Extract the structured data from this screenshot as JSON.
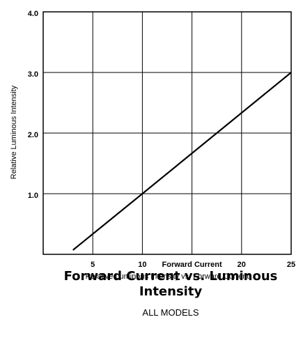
{
  "chart_data": {
    "type": "line",
    "title": "Forward Current vs. Luminous Intensity",
    "subtitle": "ALL MODELS",
    "caption": "Relative Luminous Intensity vs. Forward Current",
    "y_label": "Relative Luminous Intensity",
    "x": [
      3,
      10,
      25
    ],
    "series": [
      {
        "name": "Relative Luminous Intensity",
        "color": "#000000",
        "values": [
          0.07,
          1.0,
          3.0
        ]
      }
    ],
    "xlim": [
      0,
      25
    ],
    "xticks": [
      5,
      10,
      {
        "value": 15,
        "label": "Forward Current"
      },
      20,
      25
    ],
    "ylim": [
      0,
      4
    ],
    "yticks": [
      {
        "value": 1,
        "label": "1.0"
      },
      {
        "value": 2,
        "label": "2.0"
      },
      {
        "value": 3,
        "label": "3.0"
      },
      {
        "value": 4,
        "label": "4.0"
      }
    ],
    "grid": true
  }
}
